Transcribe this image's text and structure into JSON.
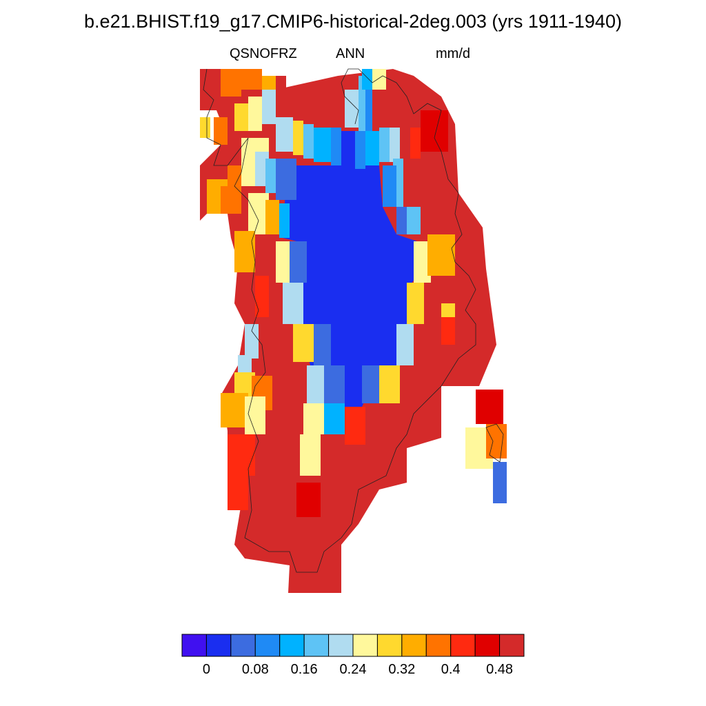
{
  "title": "b.e21.BHIST.f19_g17.CMIP6-historical-2deg.003 (yrs 1911-1940)",
  "variable": "QSNOFRZ",
  "season": "ANN",
  "units": "mm/d",
  "colorbar": {
    "colors": [
      "#4010f0",
      "#1a2ef0",
      "#3c6ce0",
      "#1f8af5",
      "#00b2ff",
      "#5ec3f5",
      "#b0dcf0",
      "#fff89c",
      "#ffd92e",
      "#ffad00",
      "#ff7300",
      "#ff2a10",
      "#e00000",
      "#d42a2a"
    ],
    "labels": [
      "0",
      "0.08",
      "0.16",
      "0.24",
      "0.32",
      "0.4",
      "0.48"
    ]
  },
  "map": {
    "region": "Greenland",
    "projection": "polar stereographic"
  }
}
